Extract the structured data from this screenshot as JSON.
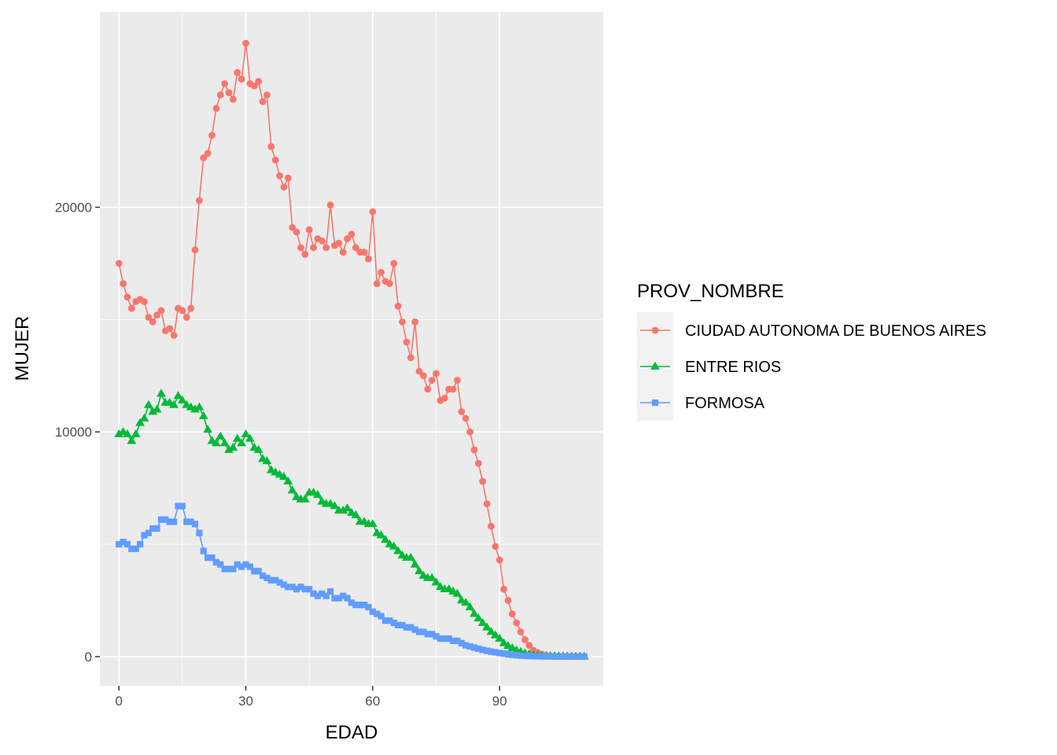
{
  "chart_data": {
    "type": "line",
    "xlabel": "EDAD",
    "ylabel": "MUJER",
    "xlim": [
      -4.5,
      114.5
    ],
    "ylim": [
      -1300,
      28700
    ],
    "x_ticks": [
      0,
      30,
      60,
      90
    ],
    "y_ticks": [
      0,
      10000,
      20000
    ],
    "x_tick_labels": [
      "0",
      "30",
      "60",
      "90"
    ],
    "y_tick_labels": [
      "0",
      "10000",
      "20000"
    ],
    "grid": true,
    "legend": {
      "title": "PROV_NOMBRE",
      "position": "right"
    },
    "series": [
      {
        "name": "CIUDAD AUTONOMA DE BUENOS AIRES",
        "color": "#F8766D",
        "marker": "circle",
        "x": [
          0,
          1,
          2,
          3,
          4,
          5,
          6,
          7,
          8,
          9,
          10,
          11,
          12,
          13,
          14,
          15,
          16,
          17,
          18,
          19,
          20,
          21,
          22,
          23,
          24,
          25,
          26,
          27,
          28,
          29,
          30,
          31,
          32,
          33,
          34,
          35,
          36,
          37,
          38,
          39,
          40,
          41,
          42,
          43,
          44,
          45,
          46,
          47,
          48,
          49,
          50,
          51,
          52,
          53,
          54,
          55,
          56,
          57,
          58,
          59,
          60,
          61,
          62,
          63,
          64,
          65,
          66,
          67,
          68,
          69,
          70,
          71,
          72,
          73,
          74,
          75,
          76,
          77,
          78,
          79,
          80,
          81,
          82,
          83,
          84,
          85,
          86,
          87,
          88,
          89,
          90,
          91,
          92,
          93,
          94,
          95,
          96,
          97,
          98,
          99,
          100,
          101,
          102,
          103,
          104,
          105,
          106,
          107,
          108,
          109,
          110
        ],
        "values": [
          17500,
          16600,
          16000,
          15500,
          15800,
          15900,
          15800,
          15100,
          14900,
          15200,
          15400,
          14500,
          14600,
          14300,
          15500,
          15400,
          15100,
          15500,
          18100,
          20300,
          22200,
          22400,
          23200,
          24400,
          25000,
          25500,
          25100,
          24800,
          26000,
          25700,
          27300,
          25500,
          25400,
          25600,
          24700,
          25000,
          22700,
          22100,
          21400,
          20900,
          21300,
          19100,
          18900,
          18200,
          17900,
          19000,
          18200,
          18600,
          18500,
          18200,
          20100,
          18300,
          18400,
          18000,
          18600,
          18800,
          18200,
          18000,
          18000,
          17700,
          19800,
          16600,
          17100,
          16700,
          16600,
          17500,
          15600,
          14900,
          14000,
          13300,
          14900,
          12700,
          12500,
          11900,
          12300,
          12600,
          11400,
          11500,
          11900,
          11900,
          12300,
          10900,
          10600,
          10000,
          9200,
          8600,
          7800,
          6800,
          5800,
          4900,
          4300,
          3000,
          2500,
          1900,
          1500,
          1100,
          750,
          500,
          280,
          180,
          100,
          50,
          30,
          18,
          12,
          8,
          5,
          3,
          2,
          1,
          1
        ]
      },
      {
        "name": "ENTRE RIOS",
        "color": "#00BA38",
        "marker": "triangle",
        "x": [
          0,
          1,
          2,
          3,
          4,
          5,
          6,
          7,
          8,
          9,
          10,
          11,
          12,
          13,
          14,
          15,
          16,
          17,
          18,
          19,
          20,
          21,
          22,
          23,
          24,
          25,
          26,
          27,
          28,
          29,
          30,
          31,
          32,
          33,
          34,
          35,
          36,
          37,
          38,
          39,
          40,
          41,
          42,
          43,
          44,
          45,
          46,
          47,
          48,
          49,
          50,
          51,
          52,
          53,
          54,
          55,
          56,
          57,
          58,
          59,
          60,
          61,
          62,
          63,
          64,
          65,
          66,
          67,
          68,
          69,
          70,
          71,
          72,
          73,
          74,
          75,
          76,
          77,
          78,
          79,
          80,
          81,
          82,
          83,
          84,
          85,
          86,
          87,
          88,
          89,
          90,
          91,
          92,
          93,
          94,
          95,
          96,
          97,
          98,
          99,
          100,
          101,
          102,
          103,
          104,
          105,
          106,
          107,
          108,
          109,
          110
        ],
        "values": [
          9900,
          10000,
          9900,
          9600,
          9900,
          10400,
          10600,
          11200,
          10900,
          11000,
          11700,
          11300,
          11300,
          11200,
          11600,
          11400,
          11200,
          11100,
          11000,
          11100,
          10700,
          10100,
          9600,
          9500,
          9800,
          9500,
          9200,
          9300,
          9700,
          9500,
          9900,
          9700,
          9300,
          9200,
          8800,
          8700,
          8300,
          8200,
          8100,
          8000,
          7800,
          7400,
          7100,
          7000,
          7000,
          7300,
          7300,
          7200,
          6900,
          6800,
          6800,
          6700,
          6500,
          6500,
          6600,
          6400,
          6300,
          6000,
          6000,
          5900,
          5900,
          5500,
          5400,
          5200,
          5000,
          4900,
          4700,
          4500,
          4400,
          4400,
          4100,
          3800,
          3600,
          3500,
          3500,
          3300,
          3100,
          3000,
          3000,
          2900,
          2800,
          2500,
          2400,
          2200,
          1900,
          1700,
          1500,
          1300,
          1100,
          950,
          800,
          600,
          480,
          380,
          280,
          210,
          150,
          110,
          80,
          55,
          40,
          30,
          22,
          16,
          12,
          9,
          6,
          4,
          3,
          2,
          2
        ]
      },
      {
        "name": "FORMOSA",
        "color": "#619CFF",
        "marker": "square",
        "x": [
          0,
          1,
          2,
          3,
          4,
          5,
          6,
          7,
          8,
          9,
          10,
          11,
          12,
          13,
          14,
          15,
          16,
          17,
          18,
          19,
          20,
          21,
          22,
          23,
          24,
          25,
          26,
          27,
          28,
          29,
          30,
          31,
          32,
          33,
          34,
          35,
          36,
          37,
          38,
          39,
          40,
          41,
          42,
          43,
          44,
          45,
          46,
          47,
          48,
          49,
          50,
          51,
          52,
          53,
          54,
          55,
          56,
          57,
          58,
          59,
          60,
          61,
          62,
          63,
          64,
          65,
          66,
          67,
          68,
          69,
          70,
          71,
          72,
          73,
          74,
          75,
          76,
          77,
          78,
          79,
          80,
          81,
          82,
          83,
          84,
          85,
          86,
          87,
          88,
          89,
          90,
          91,
          92,
          93,
          94,
          95,
          96,
          97,
          98,
          99,
          100,
          101,
          102,
          103,
          104,
          105,
          106,
          107,
          108,
          109,
          110
        ],
        "values": [
          5000,
          5100,
          5000,
          4800,
          4800,
          5000,
          5400,
          5500,
          5700,
          5700,
          6100,
          6100,
          6000,
          6000,
          6700,
          6700,
          6000,
          6000,
          5900,
          5500,
          4700,
          4400,
          4400,
          4200,
          4100,
          3900,
          3900,
          3900,
          4100,
          4000,
          4100,
          4000,
          3800,
          3800,
          3600,
          3500,
          3400,
          3400,
          3300,
          3200,
          3100,
          3100,
          3000,
          3100,
          3000,
          3000,
          2800,
          2700,
          2800,
          2700,
          2900,
          2600,
          2600,
          2700,
          2600,
          2400,
          2300,
          2300,
          2300,
          2200,
          2000,
          1900,
          1800,
          1600,
          1600,
          1500,
          1400,
          1400,
          1300,
          1300,
          1200,
          1100,
          1100,
          1000,
          1000,
          900,
          800,
          800,
          800,
          700,
          700,
          600,
          500,
          450,
          400,
          350,
          300,
          260,
          220,
          190,
          160,
          130,
          100,
          80,
          60,
          45,
          35,
          25,
          18,
          13,
          9,
          7,
          5,
          4,
          3,
          2,
          2,
          1,
          1,
          1,
          1
        ]
      }
    ]
  }
}
